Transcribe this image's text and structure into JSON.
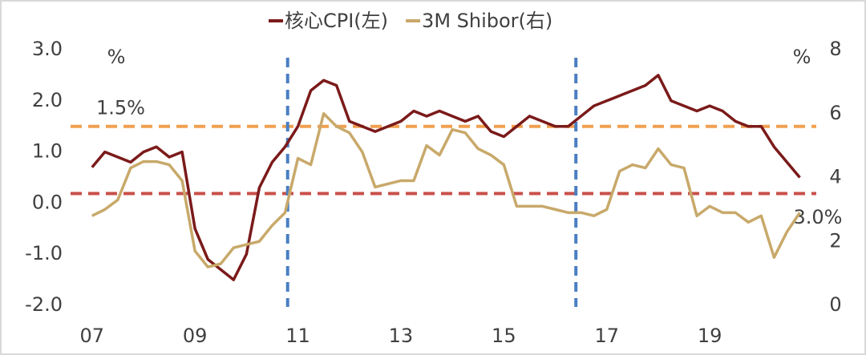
{
  "chart_data": {
    "type": "line",
    "x": [
      7,
      7.25,
      7.5,
      7.75,
      8,
      8.25,
      8.5,
      8.75,
      9,
      9.25,
      9.5,
      9.75,
      10,
      10.25,
      10.5,
      10.75,
      11,
      11.25,
      11.5,
      11.75,
      12,
      12.25,
      12.5,
      12.75,
      13,
      13.25,
      13.5,
      13.75,
      14,
      14.25,
      14.5,
      14.75,
      15,
      15.25,
      15.5,
      15.75,
      16,
      16.25,
      16.5,
      16.75,
      17,
      17.25,
      17.5,
      17.75,
      18,
      18.25,
      18.5,
      18.75,
      19,
      19.25,
      19.5,
      19.75,
      20,
      20.25,
      20.5,
      20.75
    ],
    "series": [
      {
        "name": "核心CPI(左)",
        "color": "#7b1a1a",
        "axis": "y",
        "values": [
          0.7,
          1.0,
          0.9,
          0.8,
          1.0,
          1.1,
          0.9,
          1.0,
          -0.5,
          -1.1,
          -1.3,
          -1.5,
          -1.0,
          0.3,
          0.8,
          1.1,
          1.5,
          2.2,
          2.4,
          2.3,
          1.6,
          1.5,
          1.4,
          1.5,
          1.6,
          1.8,
          1.7,
          1.8,
          1.7,
          1.6,
          1.7,
          1.4,
          1.3,
          1.5,
          1.7,
          1.6,
          1.5,
          1.5,
          1.7,
          1.9,
          2.0,
          2.1,
          2.2,
          2.3,
          2.5,
          2.0,
          1.9,
          1.8,
          1.9,
          1.8,
          1.6,
          1.5,
          1.5,
          1.1,
          0.8,
          0.5
        ]
      },
      {
        "name": "3M Shibor(右)",
        "color": "#c8a96a",
        "axis": "y2",
        "values": [
          2.8,
          3.0,
          3.3,
          4.3,
          4.5,
          4.5,
          4.4,
          3.9,
          1.7,
          1.2,
          1.3,
          1.8,
          1.9,
          2.0,
          2.5,
          2.9,
          4.6,
          4.4,
          6.0,
          5.6,
          5.4,
          4.8,
          3.7,
          3.8,
          3.9,
          3.9,
          5.0,
          4.7,
          5.5,
          5.4,
          4.9,
          4.7,
          4.4,
          3.1,
          3.1,
          3.1,
          3.0,
          2.9,
          2.9,
          2.8,
          3.0,
          4.2,
          4.4,
          4.3,
          4.9,
          4.4,
          4.3,
          2.8,
          3.1,
          2.9,
          2.9,
          2.6,
          2.8,
          1.5,
          2.3,
          2.9
        ]
      }
    ],
    "xlim": [
      6.77,
      21.07
    ],
    "xticks": [
      {
        "value": 7,
        "label": "07"
      },
      {
        "value": 9,
        "label": "09"
      },
      11,
      13,
      15,
      17,
      19
    ],
    "ylim": [
      -2,
      3
    ],
    "yticks": [
      {
        "value": -2,
        "label": "-2.0"
      },
      {
        "value": -1,
        "label": "-1.0"
      },
      {
        "value": 0,
        "label": "0.0"
      },
      {
        "value": 1,
        "label": "1.0"
      },
      {
        "value": 2,
        "label": "2.0"
      },
      {
        "value": 3,
        "label": "3.0"
      }
    ],
    "y2lim": [
      0,
      8
    ],
    "y2ticks": [
      0,
      2,
      4,
      6,
      8
    ],
    "y_unit": "%",
    "y2_unit": "%",
    "reference_lines": [
      {
        "axis": "y",
        "value": 1.5,
        "color": "#f0a050",
        "label": "1.5%"
      },
      {
        "axis": "y2",
        "value": 3.5,
        "color": "#c8504a"
      }
    ],
    "vertical_lines": [
      {
        "x": 10.8,
        "color": "#4a7fc1"
      },
      {
        "x": 16.4,
        "color": "#4a7fc1"
      }
    ],
    "annotation": "3.0%",
    "legend": "top"
  }
}
